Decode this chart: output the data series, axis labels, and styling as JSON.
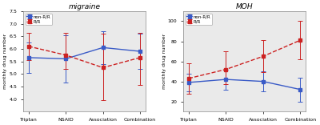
{
  "migraine": {
    "title": "migraine",
    "xlabel_categories": [
      "Triptan",
      "NSAID",
      "Association",
      "Combination"
    ],
    "ylabel": "monthly drug number",
    "ylim": [
      3.5,
      7.5
    ],
    "yticks": [
      4.0,
      4.5,
      5.0,
      5.5,
      6.0,
      6.5,
      7.0,
      7.5
    ],
    "non_RR": {
      "means": [
        5.65,
        5.6,
        6.05,
        5.9
      ],
      "errors_up": [
        0.6,
        0.95,
        0.65,
        0.7
      ],
      "errors_down": [
        0.6,
        0.95,
        0.65,
        0.7
      ],
      "color": "#3a5bc7",
      "label": "non-R/R"
    },
    "RR": {
      "means": [
        6.1,
        5.75,
        5.25,
        5.65
      ],
      "errors_up": [
        0.55,
        0.9,
        1.35,
        1.0
      ],
      "errors_down": [
        0.55,
        0.55,
        1.3,
        1.1
      ],
      "color": "#cc2222",
      "label": "R/R"
    }
  },
  "MOH": {
    "title": "MOH",
    "xlabel_categories": [
      "Triptan",
      "NSAID",
      "Association",
      "Combination"
    ],
    "ylabel": "monthly drug number",
    "ylim": [
      10,
      110
    ],
    "yticks": [
      20,
      40,
      60,
      80,
      100
    ],
    "non_RR": {
      "means": [
        39,
        42,
        40,
        32
      ],
      "errors_up": [
        9,
        10,
        10,
        12
      ],
      "errors_down": [
        9,
        10,
        10,
        12
      ],
      "color": "#3a5bc7",
      "label": "non-R/R"
    },
    "RR": {
      "means": [
        43,
        52,
        65,
        81
      ],
      "errors_up": [
        15,
        18,
        16,
        19
      ],
      "errors_down": [
        15,
        15,
        16,
        19
      ],
      "color": "#cc2222",
      "label": "R/R"
    }
  },
  "background_color": "#eaeaea",
  "fig_bg": "#ffffff"
}
